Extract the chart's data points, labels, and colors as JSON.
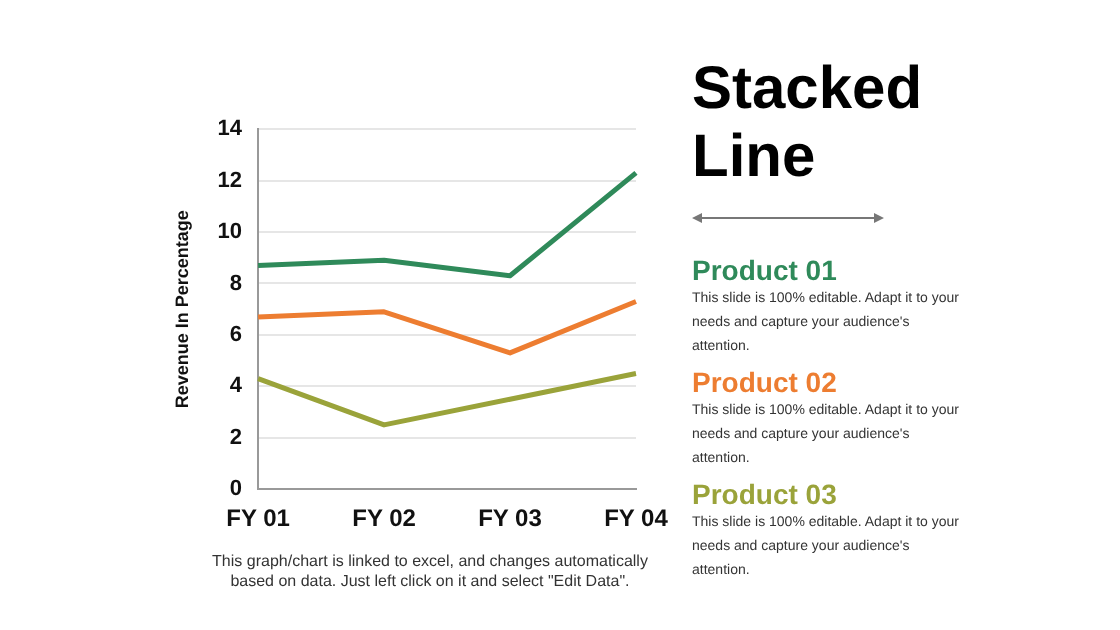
{
  "chart_data": {
    "type": "line",
    "title": "Stacked Line",
    "ylabel": "Revenue In Percentage",
    "categories": [
      "FY 01",
      "FY 02",
      "FY 03",
      "FY 04"
    ],
    "series": [
      {
        "name": "Product 01",
        "color": "#2f8a5a",
        "values": [
          8.7,
          8.9,
          8.3,
          12.3
        ]
      },
      {
        "name": "Product 02",
        "color": "#ed7d31",
        "values": [
          6.7,
          6.9,
          5.3,
          7.3
        ]
      },
      {
        "name": "Product 03",
        "color": "#9aa33a",
        "values": [
          4.3,
          2.5,
          3.5,
          4.5
        ]
      }
    ],
    "ylim": [
      0,
      14
    ],
    "yticks": [
      0,
      2,
      4,
      6,
      8,
      10,
      12,
      14
    ],
    "grid": "y",
    "legend": "right",
    "marker": "none",
    "line_style": "solid",
    "annotations": [
      "This slide is 100% editable. Adapt it to your needs and capture your audience's attention.",
      "This slide is 100% editable. Adapt it to your needs and capture your audience's attention.",
      "This slide is 100% editable. Adapt it to your needs and capture your audience's attention.",
      "This graph/chart is linked to excel, and changes automatically based on data. Just left click on it and select \"Edit Data\"."
    ]
  }
}
